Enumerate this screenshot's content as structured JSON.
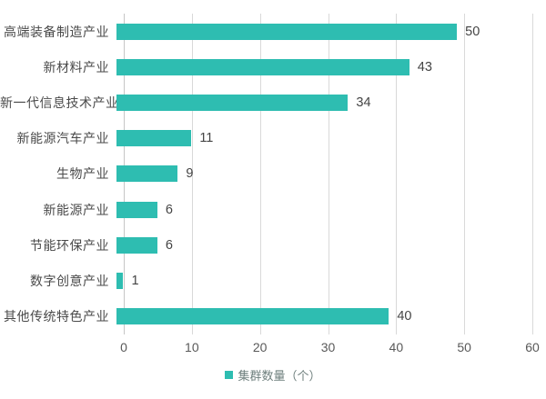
{
  "chart_data": {
    "type": "bar",
    "orientation": "horizontal",
    "categories": [
      "高端装备制造产业",
      "新材料产业",
      "新一代信息技术产业",
      "新能源汽车产业",
      "生物产业",
      "新能源产业",
      "节能环保产业",
      "数字创意产业",
      "其他传统特色产业"
    ],
    "values": [
      50,
      43,
      34,
      11,
      9,
      6,
      6,
      1,
      40
    ],
    "title": "",
    "xlabel": "",
    "ylabel": "",
    "xlim": [
      0,
      60
    ],
    "xticks": [
      0,
      10,
      20,
      30,
      40,
      50,
      60
    ],
    "grid": "vertical-on",
    "legend_position": "bottom-center",
    "legend": {
      "label": "集群数量（个）"
    }
  },
  "colors": {
    "bar": "#2ebdb1",
    "gridline": "#d9d9d9",
    "axis_line": "#c6c6c6",
    "category_label": "#4a4a4a",
    "value_label": "#444444",
    "tick_label": "#595959",
    "legend_label": "#6e7f7d",
    "background": "#ffffff"
  }
}
